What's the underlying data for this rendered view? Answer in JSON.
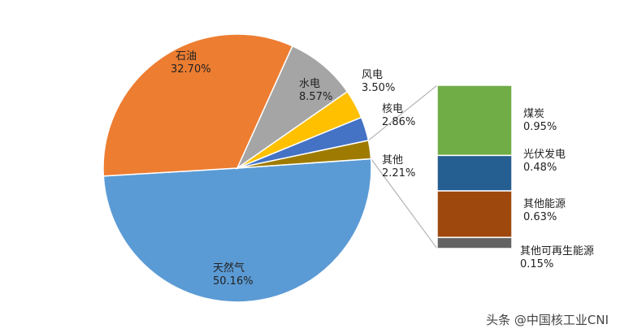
{
  "chart_data": [
    {
      "type": "pie",
      "slices": [
        {
          "name": "天然气",
          "value": 50.16,
          "label": "50.16%",
          "color": "#5B9BD5"
        },
        {
          "name": "石油",
          "value": 32.7,
          "label": "32.70%",
          "color": "#ED7D31"
        },
        {
          "name": "水电",
          "value": 8.57,
          "label": "8.57%",
          "color": "#A5A5A5"
        },
        {
          "name": "风电",
          "value": 3.5,
          "label": "3.50%",
          "color": "#FFC000"
        },
        {
          "name": "核电",
          "value": 2.86,
          "label": "2.86%",
          "color": "#4472C4"
        },
        {
          "name": "其他",
          "value": 2.21,
          "label": "2.21%",
          "color": "#9E7B00"
        }
      ]
    },
    {
      "type": "bar",
      "stacked": true,
      "breakdown_of": "其他",
      "segments": [
        {
          "name": "煤炭",
          "value": 0.95,
          "label": "0.95%",
          "color": "#70AD47"
        },
        {
          "name": "光伏发电",
          "value": 0.48,
          "label": "0.48%",
          "color": "#255E91"
        },
        {
          "name": "其他能源",
          "value": 0.63,
          "label": "0.63%",
          "color": "#9E480E"
        },
        {
          "name": "其他可再生能源",
          "value": 0.15,
          "label": "0.15%",
          "color": "#636363"
        }
      ]
    }
  ],
  "watermark": "头条 @中国核工业CNI"
}
